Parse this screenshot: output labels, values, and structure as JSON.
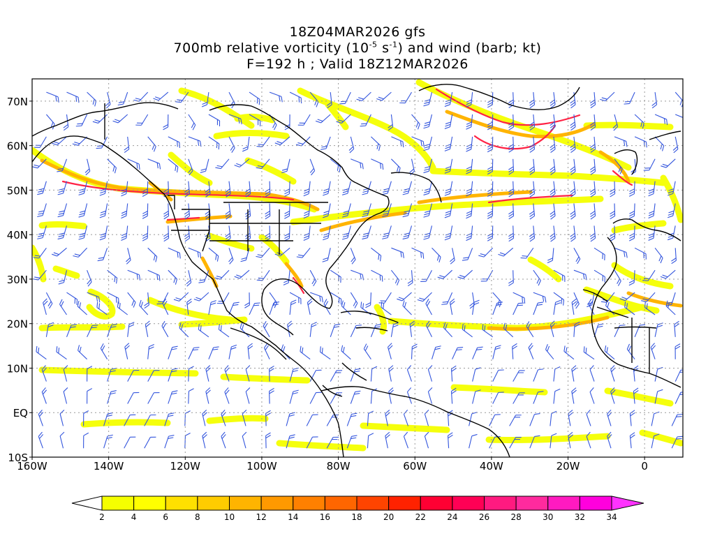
{
  "title": {
    "line1": "18Z04MAR2026 gfs",
    "line2_prefix": "700mb relative vorticity (10",
    "line2_exp1": "-5",
    "line2_mid": " s",
    "line2_exp2": "-1",
    "line2_suffix": ") and wind (barb; kt)",
    "line3": "F=192 h ; Valid 18Z12MAR2026"
  },
  "axes": {
    "lat_labels": [
      "70N",
      "60N",
      "50N",
      "40N",
      "30N",
      "20N",
      "10N",
      "EQ",
      "10S"
    ],
    "lon_labels": [
      "160W",
      "140W",
      "120W",
      "100W",
      "80W",
      "60W",
      "40W",
      "20W",
      "0"
    ]
  },
  "colorbar": {
    "labels": [
      "2",
      "4",
      "6",
      "8",
      "10",
      "12",
      "14",
      "16",
      "18",
      "20",
      "22",
      "24",
      "26",
      "28",
      "30",
      "32",
      "34"
    ],
    "colors": [
      "#f5ff00",
      "#ffff00",
      "#ffe000",
      "#ffcc00",
      "#ffb400",
      "#ff9900",
      "#ff8000",
      "#ff6600",
      "#ff4400",
      "#ff2200",
      "#ff0033",
      "#ff0055",
      "#ff1a80",
      "#ff2a9e",
      "#ff1ac0",
      "#ff00dd"
    ],
    "over_color": "#ff33ff"
  },
  "colors": {
    "barb": "#3355dd",
    "coast": "#000000",
    "grid": "#999999",
    "vort_low": "#f5ff00",
    "vort_mid": "#ffb400",
    "vort_high": "#ff2244"
  }
}
